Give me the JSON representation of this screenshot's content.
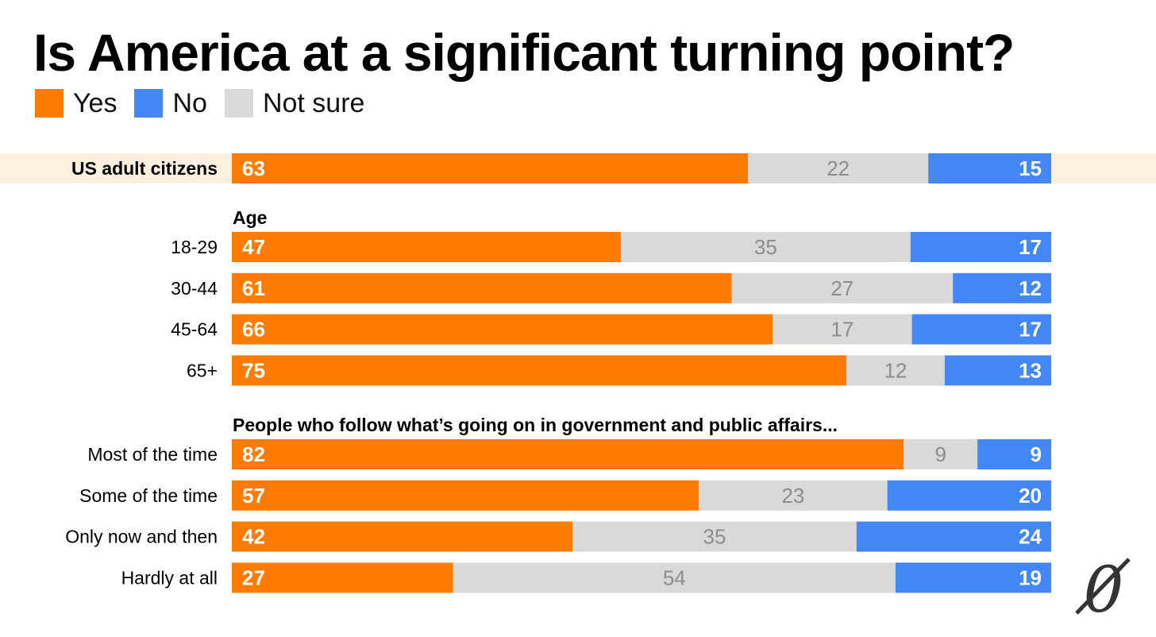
{
  "chart_data": {
    "type": "stacked-bar",
    "title": "Is America at a significant turning point?",
    "orientation": "horizontal",
    "xlim": [
      0,
      100
    ],
    "series": [
      {
        "name": "Yes",
        "color": "#FF7C00",
        "text_color": "#ffffff",
        "label_align": "left"
      },
      {
        "name": "Not sure",
        "color": "#D9D9D9",
        "text_color": "#8C8C8C",
        "label_align": "center"
      },
      {
        "name": "No",
        "color": "#4287F5",
        "text_color": "#ffffff",
        "label_align": "right"
      }
    ],
    "stack_order": [
      "Yes",
      "Not sure",
      "No"
    ],
    "groups": [
      {
        "heading": "",
        "highlight": true,
        "rows": [
          {
            "label": "US adult citizens",
            "values": {
              "Yes": 63,
              "Not sure": 22,
              "No": 15
            }
          }
        ]
      },
      {
        "heading": "Age",
        "highlight": false,
        "rows": [
          {
            "label": "18-29",
            "values": {
              "Yes": 47,
              "Not sure": 35,
              "No": 17
            }
          },
          {
            "label": "30-44",
            "values": {
              "Yes": 61,
              "Not sure": 27,
              "No": 12
            }
          },
          {
            "label": "45-64",
            "values": {
              "Yes": 66,
              "Not sure": 17,
              "No": 17
            }
          },
          {
            "label": "65+",
            "values": {
              "Yes": 75,
              "Not sure": 12,
              "No": 13
            }
          }
        ]
      },
      {
        "heading": "People who follow what’s going on in government and public affairs...",
        "highlight": false,
        "rows": [
          {
            "label": "Most of the time",
            "values": {
              "Yes": 82,
              "Not sure": 9,
              "No": 9
            }
          },
          {
            "label": "Some of the time",
            "values": {
              "Yes": 57,
              "Not sure": 23,
              "No": 20
            }
          },
          {
            "label": "Only now and then",
            "values": {
              "Yes": 42,
              "Not sure": 35,
              "No": 24
            }
          },
          {
            "label": "Hardly at all",
            "values": {
              "Yes": 27,
              "Not sure": 54,
              "No": 19
            }
          }
        ]
      }
    ],
    "highlight_color": "#FDF0DF"
  },
  "legend": [
    {
      "label": "Yes",
      "color": "#FF7C00"
    },
    {
      "label": "No",
      "color": "#4287F5"
    },
    {
      "label": "Not sure",
      "color": "#D9D9D9"
    }
  ],
  "logo": {
    "icon": "zero-slash-logo-icon",
    "glyph": "0"
  }
}
